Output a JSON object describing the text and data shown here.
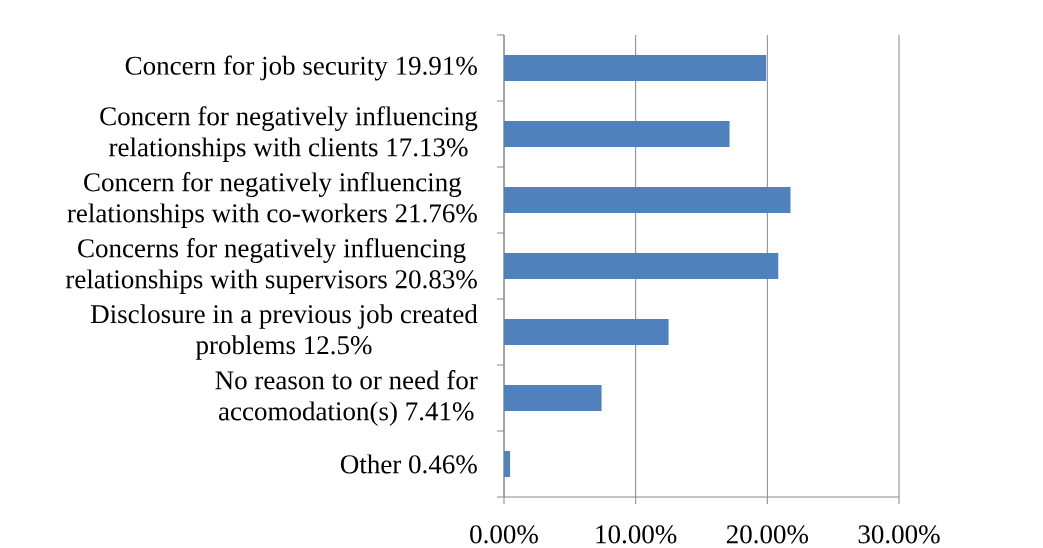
{
  "chart_data": {
    "type": "bar",
    "orientation": "horizontal",
    "categories": [
      "Concern for job security 19.91%",
      "Concern for negatively influencing relationships with clients 17.13%",
      "Concern for negatively influencing relationships with co-workers 21.76%",
      "Concerns for negatively influencing relationships with supervisors 20.83%",
      "Disclosure in a previous job created problems 12.5%",
      "No reason to or need for accomodation(s) 7.41%",
      "Other 0.46%"
    ],
    "values": [
      19.91,
      17.13,
      21.76,
      20.83,
      12.5,
      7.41,
      0.46
    ],
    "color": "#4f81bd",
    "xlim": [
      0,
      30
    ],
    "xticks": [
      {
        "value": 0,
        "label": "0.00%"
      },
      {
        "value": 10,
        "label": "10.00%"
      },
      {
        "value": 20,
        "label": "20.00%"
      },
      {
        "value": 30,
        "label": "30.00%"
      }
    ],
    "grid": "x"
  }
}
